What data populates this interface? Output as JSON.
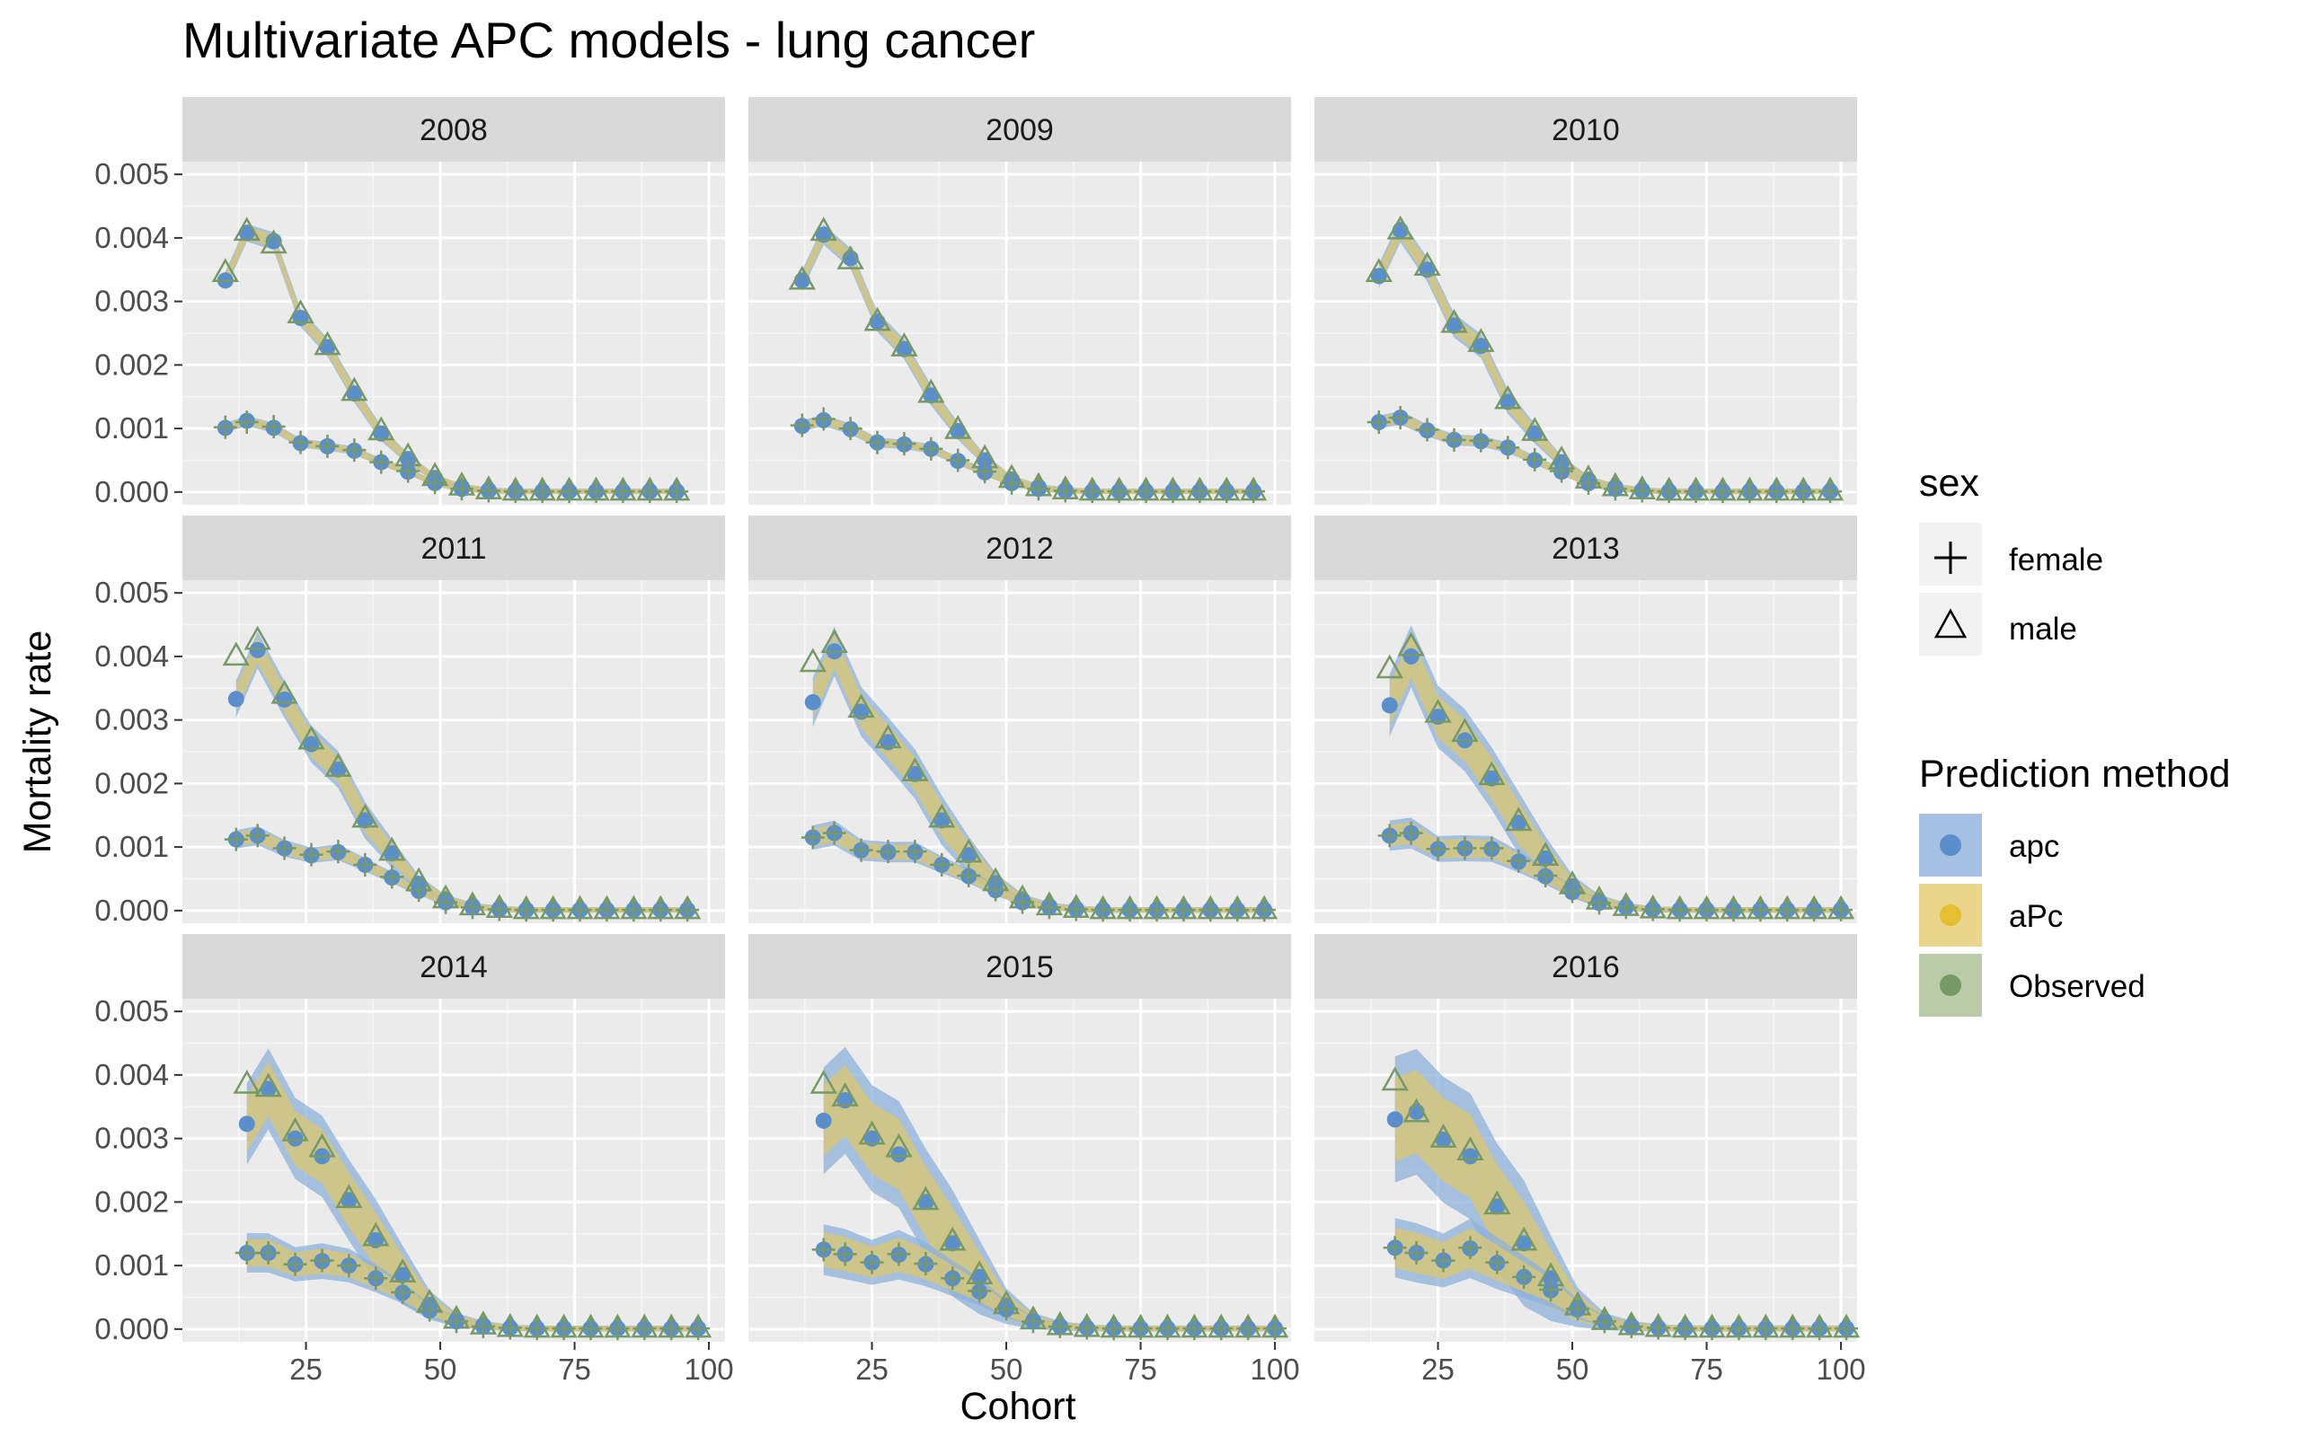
{
  "chart_data": {
    "type": "scatter",
    "title": "Multivariate APC models - lung cancer",
    "xlabel": "Cohort",
    "ylabel": "Mortality rate",
    "xlim": [
      2,
      103
    ],
    "ylim": [
      -0.0002,
      0.0052
    ],
    "x_ticks": [
      "25",
      "50",
      "75",
      "100"
    ],
    "y_ticks": [
      "0.000",
      "0.001",
      "0.002",
      "0.003",
      "0.004",
      "0.005"
    ],
    "panels": [
      {
        "label": "2008",
        "x": [
          10,
          14,
          19,
          24,
          29,
          34,
          39,
          44,
          49,
          54,
          59,
          64,
          69,
          74,
          79,
          84,
          89,
          94
        ],
        "male": {
          "observed": [
            0.00345,
            0.0041,
            0.0039,
            0.0028,
            0.0023,
            0.00158,
            0.00096,
            0.00055,
            0.00024,
            9e-05,
            3e-05,
            1e-05,
            1e-05,
            1e-05,
            1e-05,
            1e-05,
            1e-05,
            1e-05
          ],
          "apc": [
            0.00333,
            0.00408,
            0.00395,
            0.00274,
            0.00228,
            0.00155,
            0.00092,
            0.00052,
            0.00022,
            8e-05,
            3e-05,
            1e-05,
            1e-05,
            1e-05,
            1e-05,
            1e-05,
            1e-05,
            1e-05
          ]
        },
        "female": {
          "observed": [
            0.00102,
            0.0011,
            0.00103,
            0.00078,
            0.00072,
            0.00066,
            0.00047,
            0.00033,
            0.00015,
            5e-05,
            2e-05,
            1e-05,
            1e-05,
            1e-05,
            1e-05,
            1e-05,
            1e-05,
            1e-05
          ],
          "apc": [
            0.00101,
            0.00112,
            0.00101,
            0.00077,
            0.00072,
            0.00065,
            0.00047,
            0.00032,
            0.00014,
            5e-05,
            2e-05,
            1e-05,
            1e-05,
            1e-05,
            1e-05,
            1e-05,
            1e-05,
            1e-05
          ]
        },
        "band_halfwidth": 0.0001
      },
      {
        "label": "2009",
        "x": [
          12,
          16,
          21,
          26,
          31,
          36,
          41,
          46,
          51,
          56,
          61,
          66,
          71,
          76,
          81,
          86,
          91,
          96
        ],
        "male": {
          "observed": [
            0.00333,
            0.0041,
            0.00365,
            0.00268,
            0.00228,
            0.00155,
            0.00098,
            0.00052,
            0.00021,
            8e-05,
            3e-05,
            1e-05,
            1e-05,
            1e-05,
            1e-05,
            1e-05,
            1e-05,
            1e-05
          ],
          "apc": [
            0.00333,
            0.00405,
            0.00368,
            0.00268,
            0.00225,
            0.00152,
            0.00096,
            0.0005,
            0.0002,
            8e-05,
            3e-05,
            1e-05,
            1e-05,
            1e-05,
            1e-05,
            1e-05,
            1e-05,
            1e-05
          ]
        },
        "female": {
          "observed": [
            0.00105,
            0.00115,
            0.001,
            0.00078,
            0.00076,
            0.00068,
            0.0005,
            0.00032,
            0.00014,
            5e-05,
            2e-05,
            1e-05,
            1e-05,
            1e-05,
            1e-05,
            1e-05,
            1e-05,
            1e-05
          ],
          "apc": [
            0.00104,
            0.00113,
            0.00099,
            0.00078,
            0.00075,
            0.00068,
            0.00049,
            0.00031,
            0.00014,
            5e-05,
            2e-05,
            1e-05,
            1e-05,
            1e-05,
            1e-05,
            1e-05,
            1e-05,
            1e-05
          ]
        },
        "band_halfwidth": 0.00012
      },
      {
        "label": "2010",
        "x": [
          14,
          18,
          23,
          28,
          33,
          38,
          43,
          48,
          53,
          58,
          63,
          68,
          73,
          78,
          83,
          88,
          93,
          98
        ],
        "male": {
          "observed": [
            0.00345,
            0.00412,
            0.00355,
            0.00265,
            0.00235,
            0.00145,
            0.00095,
            0.0005,
            0.0002,
            8e-05,
            3e-05,
            1e-05,
            1e-05,
            1e-05,
            1e-05,
            1e-05,
            1e-05,
            1e-05
          ],
          "apc": [
            0.0034,
            0.00412,
            0.0035,
            0.00262,
            0.0023,
            0.00142,
            0.00092,
            0.00047,
            0.00019,
            8e-05,
            3e-05,
            1e-05,
            1e-05,
            1e-05,
            1e-05,
            1e-05,
            1e-05,
            1e-05
          ]
        },
        "female": {
          "observed": [
            0.0011,
            0.00117,
            0.00098,
            0.00082,
            0.00081,
            0.0007,
            0.00051,
            0.00033,
            0.00014,
            5e-05,
            2e-05,
            1e-05,
            1e-05,
            1e-05,
            1e-05,
            1e-05,
            1e-05,
            1e-05
          ],
          "apc": [
            0.0011,
            0.00117,
            0.00097,
            0.00082,
            0.0008,
            0.0007,
            0.0005,
            0.00032,
            0.00014,
            5e-05,
            2e-05,
            1e-05,
            1e-05,
            1e-05,
            1e-05,
            1e-05,
            1e-05,
            1e-05
          ]
        },
        "band_halfwidth": 0.00015
      },
      {
        "label": "2011",
        "x": [
          12,
          16,
          21,
          26,
          31,
          36,
          41,
          46,
          51,
          56,
          61,
          66,
          71,
          76,
          81,
          86,
          91,
          96
        ],
        "male": {
          "observed": [
            0.004,
            0.00425,
            0.0034,
            0.00268,
            0.00225,
            0.00145,
            0.00093,
            0.00045,
            0.00018,
            7e-05,
            3e-05,
            1e-05,
            1e-05,
            1e-05,
            1e-05,
            1e-05,
            1e-05,
            1e-05
          ],
          "apc": [
            0.00333,
            0.0041,
            0.00332,
            0.00262,
            0.00222,
            0.00142,
            0.0009,
            0.00042,
            0.00017,
            7e-05,
            3e-05,
            1e-05,
            1e-05,
            1e-05,
            1e-05,
            1e-05,
            1e-05,
            1e-05
          ]
        },
        "female": {
          "observed": [
            0.00112,
            0.00118,
            0.00098,
            0.00088,
            0.00093,
            0.00072,
            0.00053,
            0.00032,
            0.00013,
            5e-05,
            2e-05,
            1e-05,
            1e-05,
            1e-05,
            1e-05,
            1e-05,
            1e-05,
            1e-05
          ],
          "apc": [
            0.00112,
            0.00118,
            0.00098,
            0.00087,
            0.00092,
            0.00072,
            0.00052,
            0.00031,
            0.00013,
            5e-05,
            2e-05,
            1e-05,
            1e-05,
            1e-05,
            1e-05,
            1e-05,
            1e-05,
            1e-05
          ]
        },
        "band_halfwidth": 0.00025
      },
      {
        "label": "2012",
        "x": [
          14,
          18,
          23,
          28,
          33,
          38,
          43,
          48,
          53,
          58,
          63,
          68,
          73,
          78,
          83,
          88,
          93,
          98
        ],
        "male": {
          "observed": [
            0.0039,
            0.0042,
            0.00318,
            0.0027,
            0.00218,
            0.00145,
            0.0009,
            0.00045,
            0.00018,
            7e-05,
            3e-05,
            1e-05,
            1e-05,
            1e-05,
            1e-05,
            1e-05,
            1e-05,
            1e-05
          ],
          "apc": [
            0.00328,
            0.00408,
            0.00313,
            0.00265,
            0.00215,
            0.00142,
            0.00087,
            0.00043,
            0.00017,
            7e-05,
            3e-05,
            1e-05,
            1e-05,
            1e-05,
            1e-05,
            1e-05,
            1e-05,
            1e-05
          ]
        },
        "female": {
          "observed": [
            0.00115,
            0.00122,
            0.00095,
            0.00093,
            0.00093,
            0.00072,
            0.00055,
            0.00033,
            0.00013,
            5e-05,
            2e-05,
            1e-05,
            1e-05,
            1e-05,
            1e-05,
            1e-05,
            1e-05,
            1e-05
          ],
          "apc": [
            0.00115,
            0.00122,
            0.00095,
            0.00092,
            0.00092,
            0.00072,
            0.00054,
            0.00032,
            0.00013,
            5e-05,
            2e-05,
            1e-05,
            1e-05,
            1e-05,
            1e-05,
            1e-05,
            1e-05,
            1e-05
          ]
        },
        "band_halfwidth": 0.00035
      },
      {
        "label": "2013",
        "x": [
          16,
          20,
          25,
          30,
          35,
          40,
          45,
          50,
          55,
          60,
          65,
          70,
          75,
          80,
          85,
          90,
          95,
          100
        ],
        "male": {
          "observed": [
            0.0038,
            0.00415,
            0.0031,
            0.0028,
            0.00212,
            0.0014,
            0.00085,
            0.0004,
            0.00016,
            6e-05,
            2e-05,
            1e-05,
            1e-05,
            1e-05,
            1e-05,
            1e-05,
            1e-05,
            1e-05
          ],
          "apc": [
            0.00323,
            0.004,
            0.00305,
            0.00268,
            0.00208,
            0.00138,
            0.00082,
            0.00038,
            0.00015,
            6e-05,
            2e-05,
            1e-05,
            1e-05,
            1e-05,
            1e-05,
            1e-05,
            1e-05,
            1e-05
          ]
        },
        "female": {
          "observed": [
            0.00118,
            0.00122,
            0.00097,
            0.00098,
            0.00098,
            0.00078,
            0.00055,
            0.0003,
            0.00012,
            5e-05,
            2e-05,
            1e-05,
            1e-05,
            1e-05,
            1e-05,
            1e-05,
            1e-05,
            1e-05
          ],
          "apc": [
            0.00118,
            0.00122,
            0.00097,
            0.00098,
            0.00097,
            0.00077,
            0.00054,
            0.00029,
            0.00012,
            5e-05,
            2e-05,
            1e-05,
            1e-05,
            1e-05,
            1e-05,
            1e-05,
            1e-05,
            1e-05
          ]
        },
        "band_halfwidth": 0.00045
      },
      {
        "label": "2014",
        "x": [
          14,
          18,
          23,
          28,
          33,
          38,
          43,
          48,
          53,
          58,
          63,
          68,
          73,
          78,
          83,
          88,
          93,
          98
        ],
        "male": {
          "observed": [
            0.00385,
            0.0038,
            0.0031,
            0.00285,
            0.00205,
            0.00145,
            0.00088,
            0.0004,
            0.00015,
            6e-05,
            2e-05,
            1e-05,
            1e-05,
            1e-05,
            1e-05,
            1e-05,
            1e-05,
            1e-05
          ],
          "apc": [
            0.00323,
            0.00378,
            0.003,
            0.00272,
            0.00203,
            0.0014,
            0.00085,
            0.00038,
            0.00014,
            6e-05,
            2e-05,
            1e-05,
            1e-05,
            1e-05,
            1e-05,
            1e-05,
            1e-05,
            1e-05
          ]
        },
        "female": {
          "observed": [
            0.0012,
            0.0012,
            0.00102,
            0.00108,
            0.001,
            0.0008,
            0.00058,
            0.0003,
            0.00012,
            4e-05,
            2e-05,
            1e-05,
            1e-05,
            1e-05,
            1e-05,
            1e-05,
            1e-05,
            1e-05
          ],
          "apc": [
            0.0012,
            0.0012,
            0.00102,
            0.00107,
            0.001,
            0.0008,
            0.00057,
            0.00029,
            0.00012,
            4e-05,
            2e-05,
            1e-05,
            1e-05,
            1e-05,
            1e-05,
            1e-05,
            1e-05,
            1e-05
          ]
        },
        "band_halfwidth": 0.0006
      },
      {
        "label": "2015",
        "x": [
          16,
          20,
          25,
          30,
          35,
          40,
          45,
          50,
          55,
          60,
          65,
          70,
          75,
          80,
          85,
          90,
          95,
          100
        ],
        "male": {
          "observed": [
            0.00385,
            0.00365,
            0.00305,
            0.00285,
            0.00202,
            0.00138,
            0.00085,
            0.00038,
            0.00014,
            5e-05,
            2e-05,
            1e-05,
            1e-05,
            1e-05,
            1e-05,
            1e-05,
            1e-05,
            1e-05
          ],
          "apc": [
            0.00328,
            0.0036,
            0.003,
            0.00275,
            0.002,
            0.00135,
            0.00082,
            0.00036,
            0.00013,
            5e-05,
            2e-05,
            1e-05,
            1e-05,
            1e-05,
            1e-05,
            1e-05,
            1e-05,
            1e-05
          ]
        },
        "female": {
          "observed": [
            0.00125,
            0.00118,
            0.00105,
            0.00118,
            0.00103,
            0.0008,
            0.0006,
            0.00032,
            0.00012,
            4e-05,
            2e-05,
            1e-05,
            1e-05,
            1e-05,
            1e-05,
            1e-05,
            1e-05,
            1e-05
          ],
          "apc": [
            0.00125,
            0.00118,
            0.00105,
            0.00117,
            0.00102,
            0.0008,
            0.00059,
            0.00031,
            0.00012,
            4e-05,
            2e-05,
            1e-05,
            1e-05,
            1e-05,
            1e-05,
            1e-05,
            1e-05,
            1e-05
          ]
        },
        "band_halfwidth": 0.0008
      },
      {
        "label": "2016",
        "x": [
          17,
          21,
          26,
          31,
          36,
          41,
          46,
          51,
          56,
          61,
          66,
          71,
          76,
          81,
          86,
          91,
          96,
          101
        ],
        "male": {
          "observed": [
            0.0039,
            0.0034,
            0.003,
            0.0028,
            0.00195,
            0.00138,
            0.00082,
            0.00036,
            0.00013,
            5e-05,
            2e-05,
            1e-05,
            1e-05,
            1e-05,
            1e-05,
            1e-05,
            1e-05,
            1e-05
          ],
          "apc": [
            0.0033,
            0.00342,
            0.00298,
            0.00272,
            0.00193,
            0.00135,
            0.0008,
            0.00034,
            0.00012,
            5e-05,
            2e-05,
            1e-05,
            1e-05,
            1e-05,
            1e-05,
            1e-05,
            1e-05,
            1e-05
          ]
        },
        "female": {
          "observed": [
            0.00128,
            0.0012,
            0.00108,
            0.00128,
            0.00105,
            0.00082,
            0.00062,
            0.00032,
            0.00012,
            4e-05,
            2e-05,
            1e-05,
            1e-05,
            1e-05,
            1e-05,
            1e-05,
            1e-05,
            1e-05
          ],
          "apc": [
            0.00128,
            0.0012,
            0.00108,
            0.00127,
            0.00104,
            0.00082,
            0.00061,
            0.00031,
            0.00012,
            4e-05,
            2e-05,
            1e-05,
            1e-05,
            1e-05,
            1e-05,
            1e-05,
            1e-05,
            1e-05
          ]
        },
        "band_halfwidth": 0.00095
      }
    ],
    "legend": {
      "position": "right",
      "sex": {
        "title": "sex",
        "entries": [
          {
            "label": "female",
            "shape": "plus"
          },
          {
            "label": "male",
            "shape": "triangle"
          }
        ]
      },
      "method": {
        "title": "Prediction method",
        "entries": [
          {
            "label": "apc",
            "color": "#6699CC"
          },
          {
            "label": "aPc",
            "color": "#E6BE32"
          },
          {
            "label": "Observed",
            "color": "#779966"
          }
        ]
      }
    },
    "colors": {
      "panel_bg": "#EBEBEB",
      "strip_bg": "#D9D9D9",
      "grid": "#FFFFFF",
      "band_apc": "#8EB0DA",
      "band_apc_alt": "#D4C57A",
      "point_apc": "#5B8FCB",
      "point_observed": "#779966"
    },
    "grid": true
  }
}
